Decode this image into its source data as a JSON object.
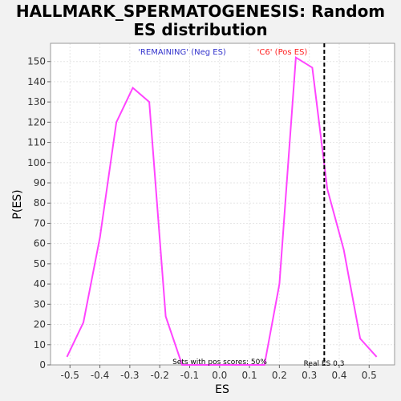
{
  "chart_data": {
    "type": "line",
    "title_line1": "HALLMARK_SPERMATOGENESIS: Random",
    "title_line2": "ES distribution",
    "xlabel": "ES",
    "ylabel": "P(ES)",
    "xlim": [
      -0.565,
      0.585
    ],
    "ylim": [
      0,
      159
    ],
    "xticks": [
      -0.5,
      -0.4,
      -0.3,
      -0.2,
      -0.1,
      0.0,
      0.1,
      0.2,
      0.3,
      0.4,
      0.5
    ],
    "xtick_labels": [
      "-0.5",
      "-0.4",
      "-0.3",
      "-0.2",
      "-0.1",
      "0.0",
      "0.1",
      "0.2",
      "0.3",
      "0.4",
      "0.5"
    ],
    "yticks": [
      0,
      10,
      20,
      30,
      40,
      50,
      60,
      70,
      80,
      90,
      100,
      110,
      120,
      130,
      140,
      150
    ],
    "grid": true,
    "series": [
      {
        "color": "#ff44ff",
        "x": [
          -0.51,
          -0.455,
          -0.4,
          -0.345,
          -0.29,
          -0.235,
          -0.18,
          -0.125,
          0.15,
          0.2,
          0.255,
          0.31,
          0.36,
          0.415,
          0.47,
          0.525
        ],
        "y": [
          4,
          21,
          63,
          120,
          137,
          130,
          24,
          0,
          0,
          40,
          152,
          147,
          87,
          57,
          13,
          4
        ]
      }
    ],
    "real_es": 0.35,
    "annotations": {
      "neg_label": "'REMAINING' (Neg ES)",
      "neg_color": "#3333cc",
      "pos_label": "'C6' (Pos ES)",
      "pos_color": "#ff2222",
      "sets_label": "Sets with pos scores: 50%",
      "real_es_label": "Real ES 0.3"
    }
  }
}
